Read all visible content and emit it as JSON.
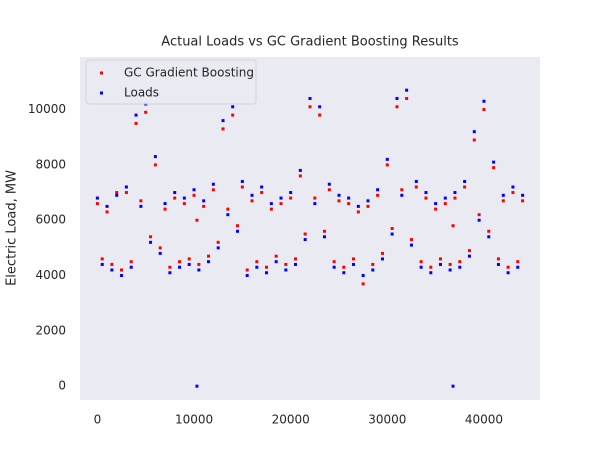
{
  "chart_data": {
    "type": "scatter",
    "title": "Actual Loads vs GC Gradient Boosting Results",
    "y_label": "Electric Load, MW",
    "x": [
      0,
      500,
      1000,
      1500,
      2000,
      2500,
      3000,
      3500,
      4000,
      4500,
      5000,
      5500,
      6000,
      6500,
      7000,
      7500,
      8000,
      8500,
      9000,
      9500,
      10000,
      10300,
      10500,
      11000,
      11500,
      12000,
      12500,
      13000,
      13500,
      14000,
      14500,
      15000,
      15500,
      16000,
      16500,
      17000,
      17500,
      18000,
      18500,
      19000,
      19500,
      20000,
      20500,
      21000,
      21500,
      22000,
      22500,
      23000,
      23500,
      24000,
      24500,
      25000,
      25500,
      26000,
      26500,
      27000,
      27500,
      28000,
      28500,
      29000,
      29500,
      30000,
      30500,
      31000,
      31500,
      32000,
      32500,
      33000,
      33500,
      34000,
      34500,
      35000,
      35500,
      36000,
      36500,
      36800,
      37000,
      37500,
      38000,
      38500,
      39000,
      39500,
      40000,
      40500,
      41000,
      41500,
      42000,
      42500,
      43000,
      43500,
      44000
    ],
    "series": [
      {
        "name": "GC Gradient Boosting",
        "color": "#ff0000",
        "values": [
          6600,
          4600,
          6300,
          4400,
          7000,
          4200,
          7000,
          4500,
          9500,
          6700,
          9900,
          5400,
          8000,
          5000,
          6400,
          4300,
          6800,
          4500,
          6600,
          4600,
          6900,
          6000,
          4400,
          6500,
          4700,
          7100,
          5200,
          9300,
          6400,
          9800,
          5800,
          7200,
          4200,
          6700,
          4500,
          7000,
          4300,
          6400,
          4700,
          6600,
          4400,
          6800,
          4600,
          7600,
          5500,
          10100,
          6800,
          9800,
          5600,
          7100,
          4500,
          6700,
          4300,
          6600,
          4600,
          6300,
          3700,
          6500,
          4400,
          6900,
          4800,
          8000,
          5700,
          10100,
          7100,
          10400,
          5300,
          7200,
          4500,
          6800,
          4300,
          6400,
          4600,
          6600,
          4400,
          5800,
          6800,
          4500,
          7200,
          4900,
          8900,
          6200,
          10000,
          5600,
          7900,
          4600,
          6700,
          4300,
          7000,
          4500,
          6700
        ]
      },
      {
        "name": "Loads",
        "color": "#0000ff",
        "values": [
          6800,
          4400,
          6500,
          4200,
          6900,
          4000,
          7200,
          4300,
          9800,
          6500,
          10200,
          5200,
          8300,
          4800,
          6600,
          4100,
          7000,
          4300,
          6800,
          4400,
          7100,
          0,
          4200,
          6700,
          4500,
          7300,
          5000,
          9600,
          6200,
          10100,
          5600,
          7400,
          4000,
          6900,
          4300,
          7200,
          4100,
          6600,
          4500,
          6800,
          4200,
          7000,
          4400,
          7800,
          5300,
          10400,
          6600,
          10100,
          5400,
          7300,
          4300,
          6900,
          4100,
          6800,
          4400,
          6500,
          4000,
          6700,
          4200,
          7100,
          4600,
          8200,
          5500,
          10400,
          6900,
          10700,
          5100,
          7400,
          4300,
          7000,
          4100,
          6600,
          4400,
          6800,
          4200,
          0,
          7000,
          4300,
          7400,
          4700,
          9200,
          6000,
          10300,
          5400,
          8100,
          4400,
          6900,
          4100,
          7200,
          4300,
          6900
        ]
      }
    ],
    "xlim": [
      -1800,
      45800
    ],
    "ylim": [
      -500,
      11900
    ],
    "xticks": [
      0,
      10000,
      20000,
      30000,
      40000
    ],
    "yticks": [
      0,
      2000,
      4000,
      6000,
      8000,
      10000
    ],
    "grid": false,
    "legend": "upper left",
    "background": "#eaeaf2"
  }
}
